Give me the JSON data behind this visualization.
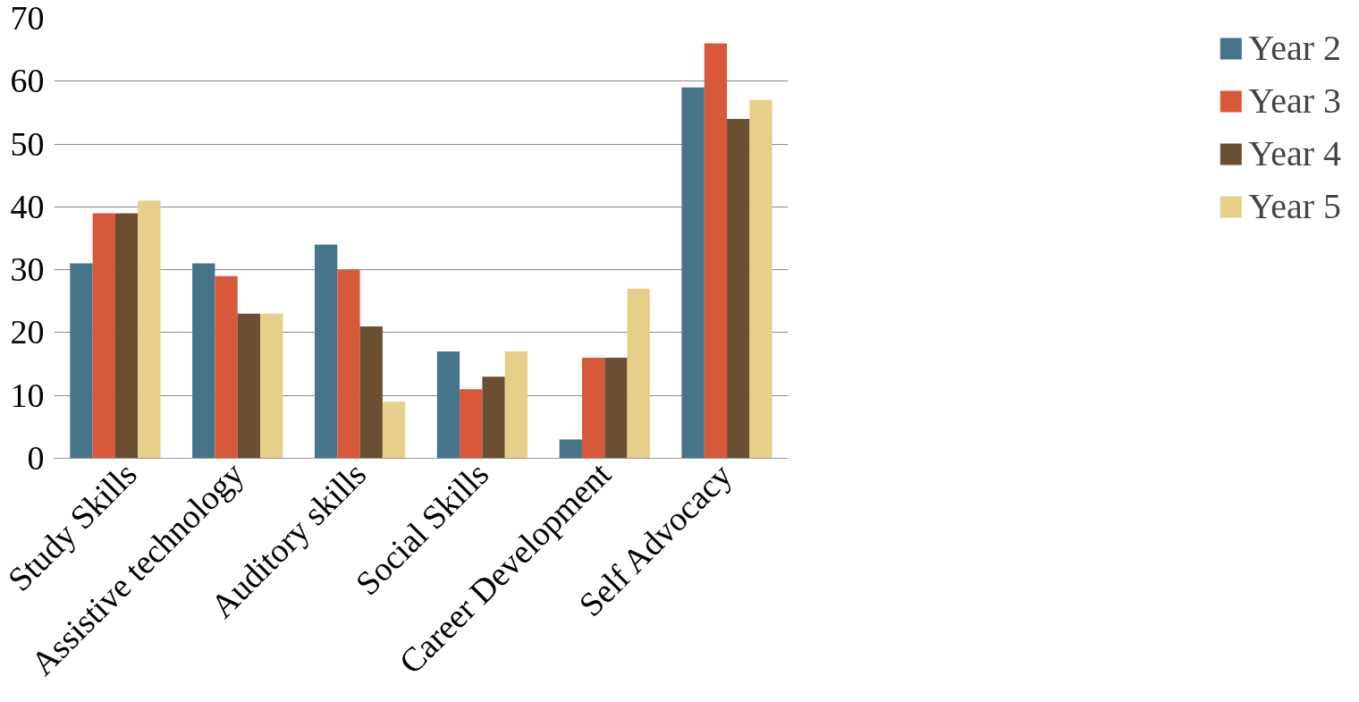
{
  "chart_data": {
    "type": "bar",
    "categories": [
      "Study Skills",
      "Assistive technology",
      "Auditory skills",
      "Social Skills",
      "Career Development",
      "Self Advocacy"
    ],
    "series": [
      {
        "name": "Year 2",
        "color": "#46748a",
        "values": [
          31,
          31,
          34,
          17,
          3,
          59
        ]
      },
      {
        "name": "Year 3",
        "color": "#d8593a",
        "values": [
          39,
          29,
          30,
          11,
          16,
          66
        ]
      },
      {
        "name": "Year 4",
        "color": "#6b4f33",
        "values": [
          39,
          23,
          21,
          13,
          16,
          54
        ]
      },
      {
        "name": "Year 5",
        "color": "#e6cf88",
        "values": [
          41,
          23,
          9,
          17,
          27,
          57
        ]
      }
    ],
    "ylim": [
      0,
      70
    ],
    "yticks": [
      0,
      10,
      20,
      30,
      40,
      50,
      60,
      70
    ],
    "grid": "y",
    "legend": "right"
  }
}
